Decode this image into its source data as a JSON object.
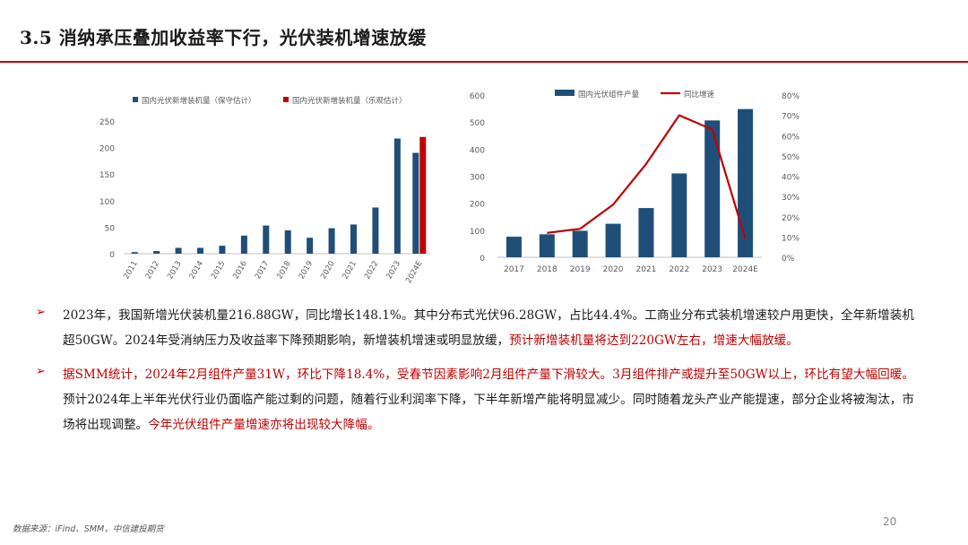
{
  "slide": {
    "title": "3.5  消纳承压叠加收益率下行，光伏装机增速放缓",
    "source": "数据来源：iFind、SMM，中信建投期货",
    "page_number": "20"
  },
  "bullets": [
    {
      "segments": [
        {
          "text": "2023年，我国新增光伏装机量216.88GW，同比增长148.1%。其中分布式光伏96.28GW，占比44.4%。工商业分布式装机增速较户用更快，全年新增装机超50GW。2024年受消纳压力及收益率下降预期影响，新增装机增速或明显放缓，",
          "red": false
        },
        {
          "text": "预计新增装机量将达到220GW左右，增速大幅放缓。",
          "red": true
        }
      ]
    },
    {
      "segments": [
        {
          "text": "据SMM统计，2024年2月组件产量31W，环比下降18.4%，受春节因素影响2月组件产量下滑较大。3月组件排产或提升至50GW以上，环比有望大幅回暖。",
          "red": true
        },
        {
          "text": "预计2024年上半年光伏行业仍面临产能过剩的问题，随着行业利润率下降，下半年新增产能将明显减少。同时随着龙头产业产能提速，部分企业将被淘汰，市场将出现调整。",
          "red": false
        },
        {
          "text": "今年光伏组件产量增速亦将出现较大降幅。",
          "red": true
        }
      ]
    }
  ],
  "chart_data": [
    {
      "type": "bar",
      "categories": [
        "2011",
        "2012",
        "2013",
        "2014",
        "2015",
        "2016",
        "2017",
        "2018",
        "2019",
        "2020",
        "2021",
        "2022",
        "2023",
        "2024E"
      ],
      "series": [
        {
          "name": "国内光伏新增装机量（保守估计）",
          "color": "#1f4e79",
          "values": [
            3,
            5,
            11,
            11,
            15,
            34,
            53,
            44,
            30,
            48,
            55,
            87,
            217,
            190
          ]
        },
        {
          "name": "国内光伏新增装机量（乐观估计）",
          "color": "#c00000",
          "values": [
            null,
            null,
            null,
            null,
            null,
            null,
            null,
            null,
            null,
            null,
            null,
            null,
            null,
            220
          ]
        }
      ],
      "ylim": [
        0,
        250
      ],
      "yticks": [
        "0",
        "50",
        "100",
        "150",
        "200",
        "250"
      ],
      "legend": "top",
      "grid": false
    },
    {
      "type": "bar+line",
      "categories": [
        "2017",
        "2018",
        "2019",
        "2020",
        "2021",
        "2022",
        "2023",
        "2024E"
      ],
      "series": [
        {
          "name": "国内光伏组件产量",
          "kind": "bar",
          "axis": "left",
          "color": "#1f4e79",
          "values": [
            76,
            85,
            98,
            124,
            182,
            310,
            506,
            548
          ]
        },
        {
          "name": "同比增速",
          "kind": "line",
          "axis": "right",
          "color": "#c00000",
          "values": [
            null,
            0.12,
            0.14,
            0.26,
            0.46,
            0.7,
            0.63,
            0.09
          ]
        }
      ],
      "ylim_left": [
        0,
        600
      ],
      "yticks_left": [
        "0",
        "100",
        "200",
        "300",
        "400",
        "500",
        "600"
      ],
      "ylim_right": [
        0,
        0.8
      ],
      "yticks_right": [
        "0%",
        "10%",
        "20%",
        "30%",
        "40%",
        "50%",
        "60%",
        "70%",
        "80%"
      ],
      "legend": "top",
      "grid": false
    }
  ]
}
